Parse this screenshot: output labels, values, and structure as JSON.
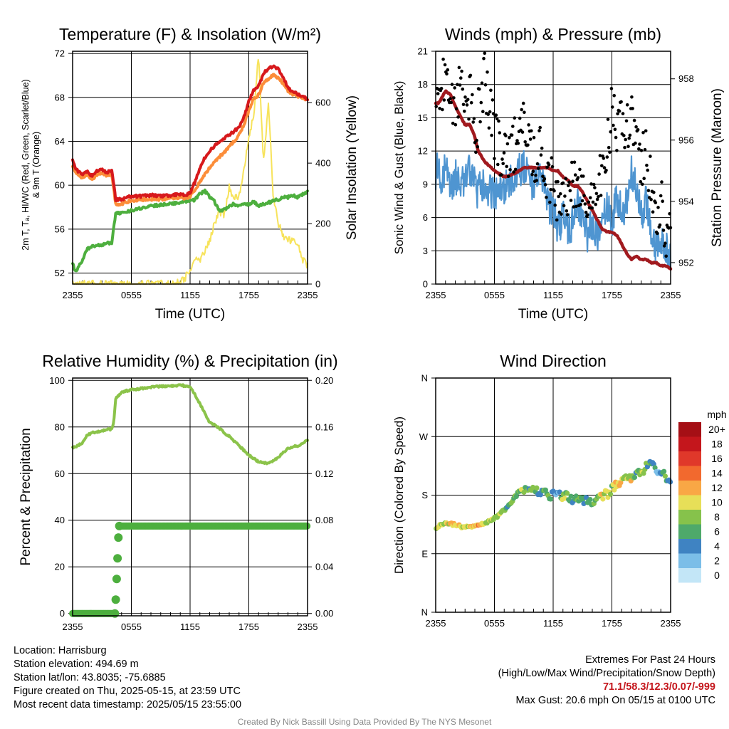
{
  "x_ticks": [
    "2355",
    "0555",
    "1155",
    "1755",
    "2355"
  ],
  "chart_data": [
    {
      "type": "line",
      "title": "Temperature (F) & Insolation (W/m²)",
      "xlabel": "Time (UTC)",
      "ylabel": "2m T, Tₐ, HI/WC (Red, Green, Scarlet/Blue)",
      "ylabel2": "& 9m T (Orange)",
      "y2label": "Solar Insolation (Yellow)",
      "xlim": [
        0,
        24
      ],
      "ylim": [
        51,
        72.2
      ],
      "y2lim": [
        0,
        770
      ],
      "yticks": [
        52,
        56,
        60,
        64,
        68,
        72
      ],
      "y2ticks": [
        0,
        200,
        400,
        600
      ],
      "x": [
        0,
        0.25,
        0.5,
        1,
        1.5,
        2,
        2.5,
        3,
        3.5,
        4,
        4.2,
        4.4,
        5,
        6,
        7,
        8,
        9,
        10,
        11,
        11.5,
        12,
        12.5,
        13,
        13.5,
        14,
        14.5,
        15,
        15.5,
        16,
        16.5,
        17,
        17.5,
        18,
        18.5,
        19,
        19.5,
        20,
        20.5,
        21,
        21.5,
        22,
        22.5,
        23,
        23.5,
        24
      ],
      "series": [
        {
          "name": "2m T",
          "color": "#d7191c",
          "values": [
            62.4,
            61.5,
            61.3,
            61.0,
            61.3,
            60.8,
            61.3,
            61.4,
            61.2,
            61.3,
            60.2,
            58.7,
            58.7,
            59.0,
            59.0,
            59.1,
            59.0,
            59.1,
            59.2,
            59.0,
            59.3,
            60.3,
            61.5,
            62.5,
            63.1,
            63.6,
            64.0,
            64.3,
            64.6,
            64.9,
            65.3,
            66.2,
            67.6,
            68.7,
            69.0,
            70.2,
            70.6,
            70.9,
            70.6,
            69.8,
            68.9,
            68.5,
            68.3,
            68.1,
            67.8
          ]
        },
        {
          "name": "9m T",
          "color": "#fc8d39",
          "values": [
            61.7,
            61.2,
            61.0,
            60.7,
            61.0,
            60.5,
            61.0,
            61.1,
            60.9,
            61.0,
            59.7,
            58.3,
            58.3,
            58.6,
            58.7,
            58.7,
            58.7,
            58.8,
            58.9,
            58.8,
            59.0,
            59.6,
            60.3,
            61.0,
            61.6,
            62.1,
            62.6,
            63.0,
            63.5,
            64.0,
            64.6,
            65.5,
            66.8,
            67.9,
            68.2,
            69.3,
            69.7,
            70.0,
            69.8,
            69.3,
            68.6,
            68.2,
            68.1,
            67.9,
            67.8
          ]
        },
        {
          "name": "Tₐ",
          "color": "#4daf3e",
          "values": [
            52.9,
            52.2,
            52.4,
            53.2,
            54.2,
            54.4,
            54.6,
            54.6,
            54.7,
            54.8,
            56.2,
            57.4,
            57.5,
            57.7,
            57.9,
            58.1,
            58.2,
            58.3,
            58.4,
            58.5,
            58.5,
            58.7,
            59.2,
            59.5,
            58.9,
            58.5,
            57.7,
            57.8,
            58.1,
            58.3,
            58.1,
            58.4,
            58.2,
            58.5,
            58.1,
            58.3,
            58.4,
            58.6,
            58.7,
            58.9,
            58.9,
            59.1,
            58.9,
            59.2,
            59.4
          ]
        },
        {
          "name": "Solar Insolation",
          "color": "#f7e35b",
          "axis": "right",
          "values": [
            0,
            0,
            0,
            0,
            0,
            0,
            0,
            0,
            0,
            0,
            0,
            0,
            0,
            0,
            0,
            0,
            0,
            0,
            5,
            20,
            50,
            85,
            80,
            110,
            140,
            200,
            240,
            230,
            320,
            280,
            290,
            380,
            480,
            560,
            760,
            400,
            600,
            290,
            200,
            160,
            150,
            140,
            130,
            80,
            60
          ]
        }
      ]
    },
    {
      "type": "line",
      "title": "Winds (mph) & Pressure (mb)",
      "xlabel": "Time (UTC)",
      "ylabel": "Sonic Wind & Gust (Blue, Black)",
      "y2label": "Station Pressure (Maroon)",
      "xlim": [
        0,
        24
      ],
      "ylim": [
        0,
        21
      ],
      "y2lim": [
        951.3,
        958.9
      ],
      "yticks": [
        0,
        3,
        6,
        9,
        12,
        15,
        18,
        21
      ],
      "y2ticks": [
        952,
        954,
        956,
        958
      ],
      "x": [
        0,
        0.25,
        0.5,
        1,
        1.5,
        2,
        2.5,
        3,
        3.5,
        4,
        4.2,
        4.4,
        5,
        6,
        7,
        8,
        9,
        10,
        11,
        11.5,
        12,
        12.5,
        13,
        13.5,
        14,
        14.5,
        15,
        15.5,
        16,
        16.5,
        17,
        17.5,
        18,
        18.5,
        19,
        19.5,
        20,
        20.5,
        21,
        21.5,
        22,
        22.5,
        23,
        23.5,
        24
      ],
      "series": [
        {
          "name": "Sonic Wind",
          "color": "#4f95d1",
          "values": [
            9.5,
            10.8,
            9.6,
            10.2,
            8.7,
            9.7,
            9.4,
            8.9,
            10.5,
            9.5,
            7.5,
            9.0,
            8.8,
            8.0,
            8.7,
            9.9,
            10.5,
            9.0,
            9.5,
            7.0,
            6.8,
            5.0,
            6.1,
            4.6,
            5.5,
            7.5,
            6.0,
            4.4,
            5.3,
            4.5,
            6.2,
            7.0,
            5.5,
            8.2,
            6.4,
            7.5,
            10.0,
            8.4,
            6.0,
            7.4,
            5.0,
            3.4,
            4.0,
            3.3,
            2.5
          ]
        },
        {
          "name": "Gust",
          "color": "#000000",
          "marker": "dot",
          "values": [
            15.0,
            18.5,
            17.2,
            19.5,
            16.5,
            15.5,
            18.5,
            16.5,
            17.5,
            15.0,
            12.5,
            16.0,
            18.5,
            13.5,
            11.5,
            12.5,
            14.0,
            11.0,
            12.0,
            8.5,
            10.0,
            7.0,
            8.5,
            7.5,
            9.5,
            9.0,
            8.5,
            7.0,
            9.0,
            8.0,
            11.0,
            12.5,
            15.5,
            14.5,
            16.0,
            14.0,
            16.5,
            13.0,
            11.0,
            12.5,
            9.0,
            6.0,
            7.5,
            5.0,
            4.5
          ]
        },
        {
          "name": "Station Pressure",
          "color": "#a11a1f",
          "axis": "right",
          "values": [
            957.2,
            957.2,
            957.3,
            957.6,
            957.5,
            957.1,
            956.8,
            956.5,
            956.5,
            956.1,
            955.8,
            955.6,
            955.3,
            955.0,
            954.8,
            954.9,
            955.1,
            955.1,
            955.1,
            955.1,
            955.0,
            955.0,
            954.8,
            954.7,
            954.5,
            954.5,
            954.3,
            954.0,
            953.7,
            953.4,
            953.1,
            953.0,
            953.0,
            952.9,
            952.6,
            952.3,
            952.1,
            952.2,
            952.1,
            952.1,
            952.0,
            952.0,
            951.9,
            951.9,
            951.8
          ]
        }
      ]
    },
    {
      "type": "line",
      "title": "Relative Humidity (%) & Precipitation (in)",
      "ylabel": "Percent & Precipitation",
      "xlim": [
        0,
        24
      ],
      "ylim": [
        -1,
        101
      ],
      "y2lim": [
        -0.002,
        0.202
      ],
      "yticks": [
        0,
        20,
        40,
        60,
        80,
        100
      ],
      "y2ticks": [
        "0.00",
        "0.04",
        "0.08",
        "0.12",
        "0.16",
        "0.20"
      ],
      "x": [
        0,
        0.25,
        0.5,
        1,
        1.5,
        2,
        2.5,
        3,
        3.5,
        4,
        4.2,
        4.4,
        5,
        6,
        7,
        8,
        9,
        10,
        11,
        11.5,
        12,
        12.5,
        13,
        13.5,
        14,
        14.5,
        15,
        15.5,
        16,
        16.5,
        17,
        17.5,
        18,
        18.5,
        19,
        19.5,
        20,
        20.5,
        21,
        21.5,
        22,
        22.5,
        23,
        23.5,
        24
      ],
      "series": [
        {
          "name": "Relative Humidity",
          "color": "#8bc34a",
          "values": [
            71.0,
            71.5,
            72.0,
            73.0,
            76.5,
            77.5,
            77.8,
            78.2,
            79.0,
            79.0,
            82.0,
            92.0,
            95.0,
            96.0,
            96.5,
            97.0,
            97.5,
            97.5,
            98.0,
            97.5,
            97.0,
            94.0,
            90.0,
            86.0,
            82.0,
            81.0,
            79.5,
            77.5,
            76.0,
            74.0,
            72.0,
            70.0,
            68.0,
            66.5,
            65.0,
            64.5,
            64.5,
            65.5,
            67.0,
            69.0,
            71.0,
            71.5,
            72.0,
            73.0,
            74.5
          ]
        },
        {
          "name": "Precipitation",
          "color": "#4daf3e",
          "axis": "right",
          "marker": "dot",
          "values": [
            0,
            0,
            0,
            0,
            0,
            0,
            0,
            0,
            0,
            0,
            0.02,
            0.06,
            0.075,
            0.075,
            0.075,
            0.075,
            0.075,
            0.075,
            0.075,
            0.075,
            0.075,
            0.075,
            0.075,
            0.075,
            0.075,
            0.075,
            0.075,
            0.075,
            0.075,
            0.075,
            0.075,
            0.075,
            0.075,
            0.075,
            0.075,
            0.075,
            0.075,
            0.075,
            0.075,
            0.075,
            0.075,
            0.075,
            0.075,
            0.075,
            0.075
          ]
        }
      ]
    },
    {
      "type": "scatter",
      "title": "Wind Direction",
      "ylabel": "Direction (Colored By Speed)",
      "xlim": [
        0,
        24
      ],
      "ylim": [
        0,
        360
      ],
      "yticks": [
        "N",
        "E",
        "S",
        "W",
        "N"
      ],
      "x": [
        0,
        0.5,
        1,
        1.5,
        2,
        2.5,
        3,
        3.5,
        4,
        4.5,
        5,
        5.5,
        6,
        6.5,
        7,
        7.5,
        8,
        8.5,
        9,
        9.5,
        10,
        10.5,
        11,
        11.5,
        12,
        12.5,
        13,
        13.5,
        14,
        14.5,
        15,
        15.5,
        16,
        16.5,
        17,
        17.5,
        18,
        18.5,
        19,
        19.5,
        20,
        20.5,
        21,
        21.5,
        22,
        22.5,
        23,
        23.5,
        24
      ],
      "direction": [
        130,
        134,
        138,
        136,
        134,
        132,
        131,
        133,
        132,
        135,
        137,
        140,
        145,
        150,
        157,
        165,
        175,
        185,
        191,
        190,
        188,
        186,
        185,
        181,
        180,
        179,
        178,
        177,
        175,
        173,
        172,
        170,
        168,
        172,
        176,
        182,
        188,
        195,
        202,
        205,
        208,
        214,
        212,
        222,
        228,
        220,
        218,
        205,
        200
      ],
      "speed": [
        9,
        10,
        9,
        11,
        10,
        10,
        9,
        10,
        11,
        12,
        10,
        9,
        8,
        8,
        7,
        6,
        7,
        8,
        7,
        6,
        8,
        4,
        7,
        6,
        5,
        3,
        8,
        6,
        4,
        7,
        4,
        5,
        6,
        8,
        10,
        9,
        8,
        10,
        11,
        9,
        10,
        6,
        9,
        7,
        5,
        4,
        5,
        6,
        3
      ],
      "legend_title": "mph",
      "legend_labels": [
        "20+",
        "18",
        "16",
        "14",
        "12",
        "10",
        "8",
        "6",
        "4",
        "2",
        "0"
      ],
      "legend_colors": [
        "#a50f15",
        "#c4161c",
        "#e0382a",
        "#f2692e",
        "#f9a745",
        "#e7df58",
        "#86c24b",
        "#4ea96a",
        "#3f83c2",
        "#7bbee8",
        "#c3e6f7"
      ]
    }
  ],
  "info": {
    "location": "Location: Harrisburg",
    "elevation": "Station elevation: 494.69 m",
    "latlon": "Station lat/lon: 43.8035; -75.6885",
    "created": "Figure created on Thu, 2025-05-15, at 23:59 UTC",
    "recent": "Most recent data timestamp: 2025/05/15 23:55:00"
  },
  "extremes": {
    "title": "Extremes For Past 24 Hours",
    "subtitle": "(High/Low/Max Wind/Precipitation/Snow Depth)",
    "values": "71.1/58.3/12.3/0.07/-999",
    "gust": "Max Gust: 20.6 mph On 05/15 at 0100 UTC"
  },
  "credit": "Created By Nick Bassill Using Data Provided By The NYS Mesonet"
}
